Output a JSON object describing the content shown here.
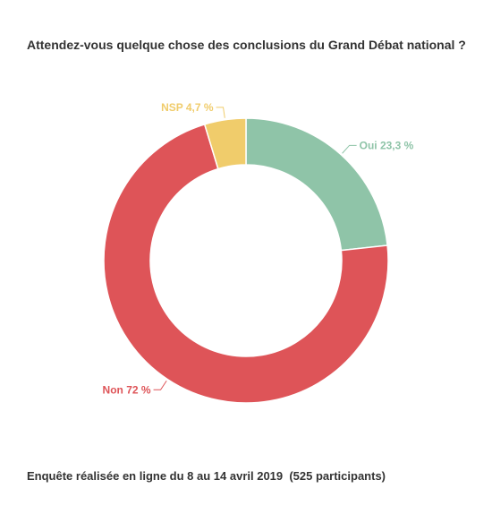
{
  "chart_data": {
    "type": "pie",
    "title": "Attendez-vous quelque chose des conclusions du Grand Débat national ?",
    "footnote": "Enquête réalisée en ligne du 8 au 14 avril 2019  (525 participants)",
    "donut": true,
    "categories": [
      "Oui",
      "Non",
      "NSP"
    ],
    "values": [
      23.3,
      72,
      4.7
    ],
    "labels": [
      "Oui 23,3 %",
      "Non 72 %",
      "NSP 4,7 %"
    ],
    "colors": [
      "#8fc4a8",
      "#de5458",
      "#f0cc6b"
    ]
  }
}
